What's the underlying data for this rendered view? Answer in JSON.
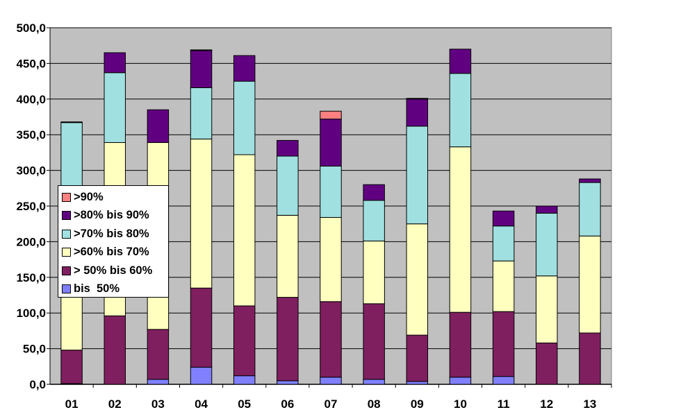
{
  "chart_data": {
    "type": "stacked-bar",
    "categories": [
      "01",
      "02",
      "03",
      "04",
      "05",
      "06",
      "07",
      "08",
      "09",
      "10",
      "11",
      "12",
      "13"
    ],
    "ylim": [
      0,
      500
    ],
    "yticks": [
      "0,0",
      "50,0",
      "100,0",
      "150,0",
      "200,0",
      "250,0",
      "300,0",
      "350,0",
      "400,0",
      "450,0",
      "500,0"
    ],
    "grid": true,
    "legend_position": "left",
    "plot_background": "#c0c0c0",
    "series": [
      {
        "name": "bis  50%",
        "color": "#8080ff",
        "values": [
          1,
          0,
          7,
          24,
          12,
          5,
          10,
          7,
          4,
          10,
          11,
          0,
          0
        ]
      },
      {
        "name": "> 50% bis 60%",
        "color": "#7f1f5f",
        "values": [
          47,
          96,
          70,
          111,
          98,
          117,
          106,
          106,
          65,
          91,
          91,
          58,
          72
        ]
      },
      {
        "name": ">60% bis 70%",
        "color": "#ffffc0",
        "values": [
          77,
          243,
          262,
          209,
          212,
          115,
          118,
          88,
          156,
          232,
          71,
          94,
          136
        ]
      },
      {
        "name": ">70% bis 80%",
        "color": "#a0e0e0",
        "values": [
          242,
          98,
          0,
          72,
          103,
          83,
          72,
          57,
          137,
          103,
          49,
          88,
          75
        ]
      },
      {
        "name": ">80% bis 90%",
        "color": "#600080",
        "values": [
          1,
          28,
          46,
          52,
          36,
          22,
          66,
          22,
          38,
          34,
          21,
          10,
          5
        ]
      },
      {
        "name": ">90%",
        "color": "#ff8080",
        "values": [
          0,
          0,
          0,
          1,
          0,
          0,
          11,
          0,
          1,
          0,
          0,
          0,
          0
        ]
      }
    ]
  }
}
